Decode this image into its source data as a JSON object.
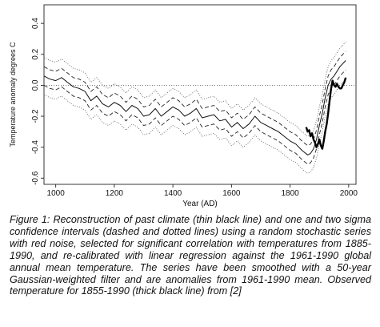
{
  "caption": "Figure 1: Reconstruction of past climate (thin black line) and one and two sigma confidence intervals (dashed and dotted lines) using a random stochastic series with red noise, selected for significant correlation with temperatures from 1885-1990, and re-calibrated with linear regression against the 1961-1990 global annual mean temperature. The series have been smoothed with a 50-year Gaussian-weighted filter and are anomalies from 1961-1990 mean. Observed temperature for 1855-1990 (thick black line) from [2]",
  "chart_data": {
    "type": "line",
    "title": "",
    "xlabel": "Year (AD)",
    "ylabel": "Temperature anomaly degrees C",
    "xlim": [
      960,
      2025
    ],
    "ylim": [
      -0.64,
      0.52
    ],
    "xticks": [
      1000,
      1200,
      1400,
      1600,
      1800,
      2000
    ],
    "xtick_labels": [
      "1000",
      "1200",
      "1400",
      "1600",
      "1800",
      "2000"
    ],
    "yticks": [
      -0.6,
      -0.4,
      -0.2,
      0.0,
      0.2,
      0.4
    ],
    "ytick_labels": [
      "-0.6",
      "-0.4",
      "-0.2",
      "0.0",
      "0.2",
      "0.4"
    ],
    "zero_line": 0.0,
    "grid": false,
    "legend": "none",
    "series": [
      {
        "style": "thin",
        "x": [
          960,
          980,
          1000,
          1020,
          1040,
          1060,
          1080,
          1100,
          1120,
          1140,
          1160,
          1180,
          1200,
          1220,
          1240,
          1260,
          1280,
          1300,
          1320,
          1340,
          1360,
          1380,
          1400,
          1420,
          1440,
          1460,
          1480,
          1500,
          1520,
          1540,
          1560,
          1580,
          1600,
          1620,
          1640,
          1660,
          1680,
          1700,
          1720,
          1740,
          1760,
          1780,
          1800,
          1820,
          1840,
          1860,
          1870,
          1880,
          1890,
          1900,
          1910,
          1920,
          1930,
          1940,
          1950,
          1960,
          1970,
          1980,
          1990
        ],
        "y": [
          0.06,
          0.04,
          0.03,
          0.05,
          0.02,
          -0.01,
          -0.02,
          -0.04,
          -0.1,
          -0.07,
          -0.12,
          -0.14,
          -0.11,
          -0.13,
          -0.17,
          -0.13,
          -0.15,
          -0.2,
          -0.19,
          -0.15,
          -0.2,
          -0.17,
          -0.14,
          -0.16,
          -0.2,
          -0.18,
          -0.15,
          -0.21,
          -0.2,
          -0.19,
          -0.23,
          -0.22,
          -0.27,
          -0.24,
          -0.28,
          -0.25,
          -0.2,
          -0.24,
          -0.26,
          -0.28,
          -0.3,
          -0.33,
          -0.36,
          -0.38,
          -0.42,
          -0.45,
          -0.44,
          -0.41,
          -0.35,
          -0.26,
          -0.18,
          -0.08,
          0.0,
          0.04,
          0.06,
          0.09,
          0.12,
          0.14,
          0.16
        ]
      },
      {
        "style": "dashed",
        "x": [
          960,
          980,
          1000,
          1020,
          1040,
          1060,
          1080,
          1100,
          1120,
          1140,
          1160,
          1180,
          1200,
          1220,
          1240,
          1260,
          1280,
          1300,
          1320,
          1340,
          1360,
          1380,
          1400,
          1420,
          1440,
          1460,
          1480,
          1500,
          1520,
          1540,
          1560,
          1580,
          1600,
          1620,
          1640,
          1660,
          1680,
          1700,
          1720,
          1740,
          1760,
          1780,
          1800,
          1820,
          1840,
          1860,
          1870,
          1880,
          1890,
          1900,
          1910,
          1920,
          1930,
          1940,
          1950,
          1960,
          1970,
          1980,
          1990
        ],
        "y": [
          0.12,
          0.1,
          0.09,
          0.11,
          0.08,
          0.05,
          0.04,
          0.02,
          -0.04,
          -0.01,
          -0.06,
          -0.08,
          -0.05,
          -0.07,
          -0.11,
          -0.07,
          -0.09,
          -0.14,
          -0.13,
          -0.09,
          -0.14,
          -0.11,
          -0.08,
          -0.1,
          -0.14,
          -0.12,
          -0.09,
          -0.15,
          -0.14,
          -0.13,
          -0.17,
          -0.16,
          -0.21,
          -0.18,
          -0.22,
          -0.19,
          -0.14,
          -0.18,
          -0.2,
          -0.22,
          -0.24,
          -0.27,
          -0.3,
          -0.32,
          -0.36,
          -0.39,
          -0.38,
          -0.35,
          -0.29,
          -0.2,
          -0.12,
          -0.02,
          0.06,
          0.1,
          0.12,
          0.15,
          0.18,
          0.2,
          0.22
        ]
      },
      {
        "style": "dashed",
        "x": [
          960,
          980,
          1000,
          1020,
          1040,
          1060,
          1080,
          1100,
          1120,
          1140,
          1160,
          1180,
          1200,
          1220,
          1240,
          1260,
          1280,
          1300,
          1320,
          1340,
          1360,
          1380,
          1400,
          1420,
          1440,
          1460,
          1480,
          1500,
          1520,
          1540,
          1560,
          1580,
          1600,
          1620,
          1640,
          1660,
          1680,
          1700,
          1720,
          1740,
          1760,
          1780,
          1800,
          1820,
          1840,
          1860,
          1870,
          1880,
          1890,
          1900,
          1910,
          1920,
          1930,
          1940,
          1950,
          1960,
          1970,
          1980,
          1990
        ],
        "y": [
          0.0,
          -0.02,
          -0.03,
          -0.01,
          -0.04,
          -0.07,
          -0.08,
          -0.1,
          -0.16,
          -0.13,
          -0.18,
          -0.2,
          -0.17,
          -0.19,
          -0.23,
          -0.19,
          -0.21,
          -0.26,
          -0.25,
          -0.21,
          -0.26,
          -0.23,
          -0.2,
          -0.22,
          -0.26,
          -0.24,
          -0.21,
          -0.27,
          -0.26,
          -0.25,
          -0.29,
          -0.28,
          -0.33,
          -0.3,
          -0.34,
          -0.31,
          -0.26,
          -0.3,
          -0.32,
          -0.34,
          -0.36,
          -0.39,
          -0.42,
          -0.44,
          -0.48,
          -0.51,
          -0.5,
          -0.47,
          -0.41,
          -0.32,
          -0.24,
          -0.14,
          -0.06,
          -0.02,
          0.0,
          0.03,
          0.06,
          0.08,
          0.1
        ]
      },
      {
        "style": "dotted",
        "x": [
          960,
          980,
          1000,
          1020,
          1040,
          1060,
          1080,
          1100,
          1120,
          1140,
          1160,
          1180,
          1200,
          1220,
          1240,
          1260,
          1280,
          1300,
          1320,
          1340,
          1360,
          1380,
          1400,
          1420,
          1440,
          1460,
          1480,
          1500,
          1520,
          1540,
          1560,
          1580,
          1600,
          1620,
          1640,
          1660,
          1680,
          1700,
          1720,
          1740,
          1760,
          1780,
          1800,
          1820,
          1840,
          1860,
          1870,
          1880,
          1890,
          1900,
          1910,
          1920,
          1930,
          1940,
          1950,
          1960,
          1970,
          1980,
          1990
        ],
        "y": [
          0.18,
          0.16,
          0.15,
          0.17,
          0.14,
          0.11,
          0.1,
          0.08,
          0.02,
          0.05,
          0.0,
          -0.02,
          0.01,
          -0.01,
          -0.05,
          -0.01,
          -0.03,
          -0.08,
          -0.07,
          -0.03,
          -0.08,
          -0.05,
          -0.02,
          -0.04,
          -0.08,
          -0.06,
          -0.03,
          -0.09,
          -0.08,
          -0.07,
          -0.11,
          -0.1,
          -0.15,
          -0.12,
          -0.16,
          -0.13,
          -0.08,
          -0.12,
          -0.14,
          -0.16,
          -0.18,
          -0.21,
          -0.24,
          -0.26,
          -0.3,
          -0.33,
          -0.32,
          -0.29,
          -0.23,
          -0.14,
          -0.06,
          0.04,
          0.12,
          0.16,
          0.18,
          0.21,
          0.24,
          0.26,
          0.28
        ]
      },
      {
        "style": "dotted",
        "x": [
          960,
          980,
          1000,
          1020,
          1040,
          1060,
          1080,
          1100,
          1120,
          1140,
          1160,
          1180,
          1200,
          1220,
          1240,
          1260,
          1280,
          1300,
          1320,
          1340,
          1360,
          1380,
          1400,
          1420,
          1440,
          1460,
          1480,
          1500,
          1520,
          1540,
          1560,
          1580,
          1600,
          1620,
          1640,
          1660,
          1680,
          1700,
          1720,
          1740,
          1760,
          1780,
          1800,
          1820,
          1840,
          1860,
          1870,
          1880,
          1890,
          1900,
          1910,
          1920,
          1930,
          1940,
          1950,
          1960,
          1970,
          1980,
          1990
        ],
        "y": [
          -0.06,
          -0.08,
          -0.09,
          -0.07,
          -0.1,
          -0.13,
          -0.14,
          -0.16,
          -0.22,
          -0.19,
          -0.24,
          -0.26,
          -0.23,
          -0.25,
          -0.29,
          -0.25,
          -0.27,
          -0.32,
          -0.31,
          -0.27,
          -0.32,
          -0.29,
          -0.26,
          -0.28,
          -0.32,
          -0.3,
          -0.27,
          -0.33,
          -0.32,
          -0.31,
          -0.35,
          -0.34,
          -0.39,
          -0.36,
          -0.4,
          -0.37,
          -0.32,
          -0.36,
          -0.38,
          -0.4,
          -0.42,
          -0.45,
          -0.48,
          -0.5,
          -0.54,
          -0.57,
          -0.56,
          -0.53,
          -0.47,
          -0.38,
          -0.3,
          -0.2,
          -0.12,
          -0.08,
          -0.06,
          -0.03,
          0.0,
          0.02,
          0.04
        ]
      },
      {
        "style": "thick",
        "x": [
          1855,
          1860,
          1865,
          1870,
          1875,
          1880,
          1885,
          1890,
          1895,
          1900,
          1905,
          1910,
          1915,
          1920,
          1925,
          1930,
          1935,
          1940,
          1945,
          1950,
          1955,
          1960,
          1965,
          1970,
          1975,
          1980,
          1985,
          1990
        ],
        "y": [
          -0.27,
          -0.3,
          -0.29,
          -0.33,
          -0.31,
          -0.35,
          -0.37,
          -0.4,
          -0.38,
          -0.35,
          -0.39,
          -0.41,
          -0.36,
          -0.3,
          -0.25,
          -0.18,
          -0.1,
          -0.02,
          0.03,
          0.0,
          -0.01,
          0.01,
          -0.01,
          -0.02,
          -0.02,
          0.0,
          0.02,
          0.05
        ]
      }
    ]
  }
}
